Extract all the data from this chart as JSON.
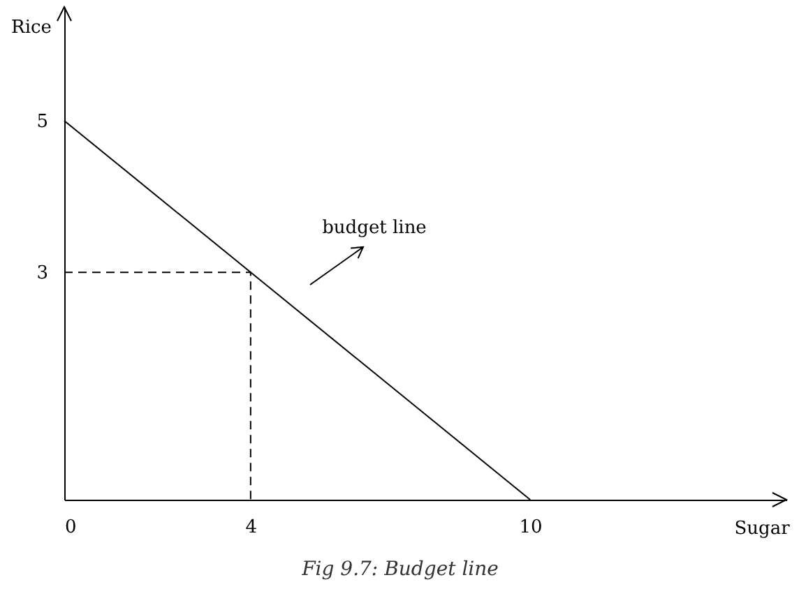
{
  "chart_data": {
    "type": "line",
    "title": "Fig 9.7: Budget line",
    "xlabel": "Sugar",
    "ylabel": "Rice",
    "series": [
      {
        "x": [
          0,
          10
        ],
        "values": [
          5,
          0
        ],
        "color": "#000000"
      },
      {
        "x": [
          0,
          4,
          4
        ],
        "values": [
          3,
          3,
          0
        ],
        "color": "#000000",
        "line_style": "dashed"
      }
    ],
    "xlim": [
      0,
      15.5
    ],
    "ylim": [
      0,
      6.5
    ],
    "xticks": [
      0,
      4,
      10
    ],
    "yticks": [
      3,
      5
    ],
    "grid": false,
    "marker": "none",
    "line_style": "solid",
    "annotations": [
      "budget line"
    ]
  }
}
